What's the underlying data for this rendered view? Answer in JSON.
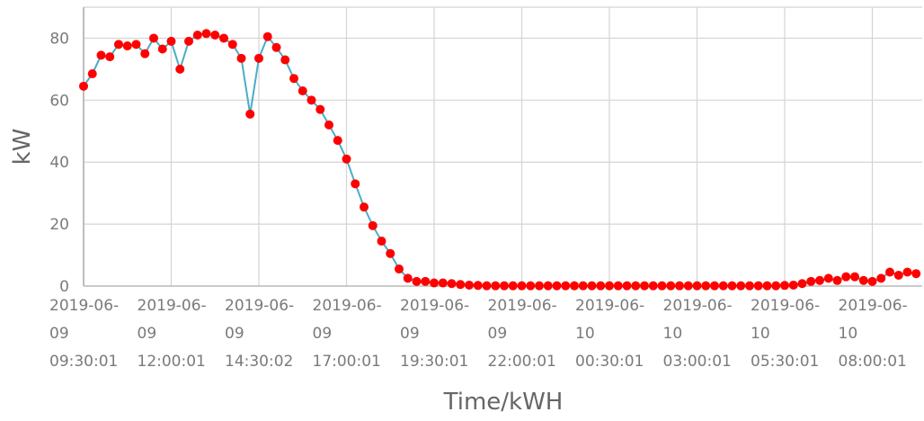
{
  "chart_data": {
    "type": "line",
    "title": "",
    "xlabel": "Time/kWH",
    "ylabel": "kW",
    "ylim": [
      0,
      90
    ],
    "y_ticks": [
      0,
      20,
      40,
      60,
      80
    ],
    "grid": true,
    "line_color": "#4bacc6",
    "marker_color": "#ff0000",
    "x_tick_labels": [
      [
        "2019-06-",
        "09",
        "09:30:01"
      ],
      [
        "2019-06-",
        "09",
        "12:00:01"
      ],
      [
        "2019-06-",
        "09",
        "14:30:02"
      ],
      [
        "2019-06-",
        "09",
        "17:00:01"
      ],
      [
        "2019-06-",
        "09",
        "19:30:01"
      ],
      [
        "2019-06-",
        "09",
        "22:00:01"
      ],
      [
        "2019-06-",
        "10",
        "00:30:01"
      ],
      [
        "2019-06-",
        "10",
        "03:00:01"
      ],
      [
        "2019-06-",
        "10",
        "05:30:01"
      ],
      [
        "2019-06-",
        "10",
        "08:00:01"
      ]
    ],
    "x_interval_minutes": 15,
    "series": [
      {
        "values": [
          64.5,
          68.5,
          74.5,
          74,
          78,
          77.5,
          78,
          75,
          80,
          76.5,
          79,
          70,
          79,
          81,
          81.5,
          81,
          80,
          78,
          73.5,
          55.5,
          73.5,
          80.5,
          77,
          73,
          67,
          63,
          60,
          57,
          52,
          47,
          41,
          33,
          25.5,
          19.5,
          14.5,
          10.5,
          5.5,
          2.5,
          1.5,
          1.5,
          1,
          1,
          0.8,
          0.5,
          0.3,
          0.2,
          0.1,
          0.1,
          0.1,
          0.1,
          0.1,
          0.1,
          0.1,
          0.1,
          0.1,
          0.1,
          0.1,
          0.1,
          0.1,
          0.1,
          0.1,
          0.1,
          0.1,
          0.1,
          0.1,
          0.1,
          0.1,
          0.1,
          0.1,
          0.1,
          0.1,
          0.1,
          0.1,
          0.1,
          0.1,
          0.1,
          0.1,
          0.1,
          0.1,
          0.1,
          0.2,
          0.3,
          0.8,
          1.5,
          1.8,
          2.5,
          1.8,
          3,
          3,
          1.8,
          1.5,
          2.5,
          4.5,
          3.5,
          4.5,
          4
        ]
      }
    ]
  }
}
